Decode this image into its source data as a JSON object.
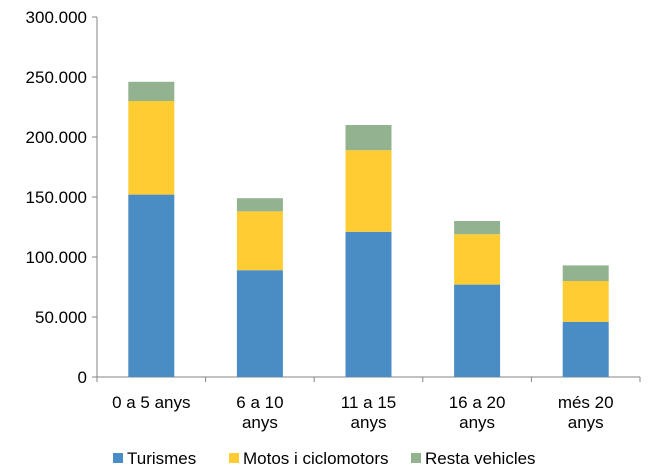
{
  "chart_data": {
    "type": "bar",
    "stacked": true,
    "categories": [
      [
        "0 a 5 anys"
      ],
      [
        "6  a 10",
        "anys"
      ],
      [
        "11 a 15",
        "anys"
      ],
      [
        "16 a 20",
        "anys"
      ],
      [
        "més 20",
        "anys"
      ]
    ],
    "series": [
      {
        "name": "Turismes",
        "color": "#4a8cc4",
        "values": [
          152000,
          89000,
          121000,
          77000,
          46000
        ]
      },
      {
        "name": "Motos i ciclomotors",
        "color": "#ffcc33",
        "values": [
          78000,
          49000,
          68000,
          42000,
          34000
        ]
      },
      {
        "name": "Resta vehicles",
        "color": "#93b28f",
        "values": [
          16000,
          11000,
          21000,
          11000,
          13000
        ]
      }
    ],
    "yticks": [
      "0",
      "50.000",
      "100.000",
      "150.000",
      "200.000",
      "250.000",
      "300.000"
    ],
    "ylim": [
      0,
      300000
    ],
    "grid": false,
    "legend": "bottom"
  }
}
